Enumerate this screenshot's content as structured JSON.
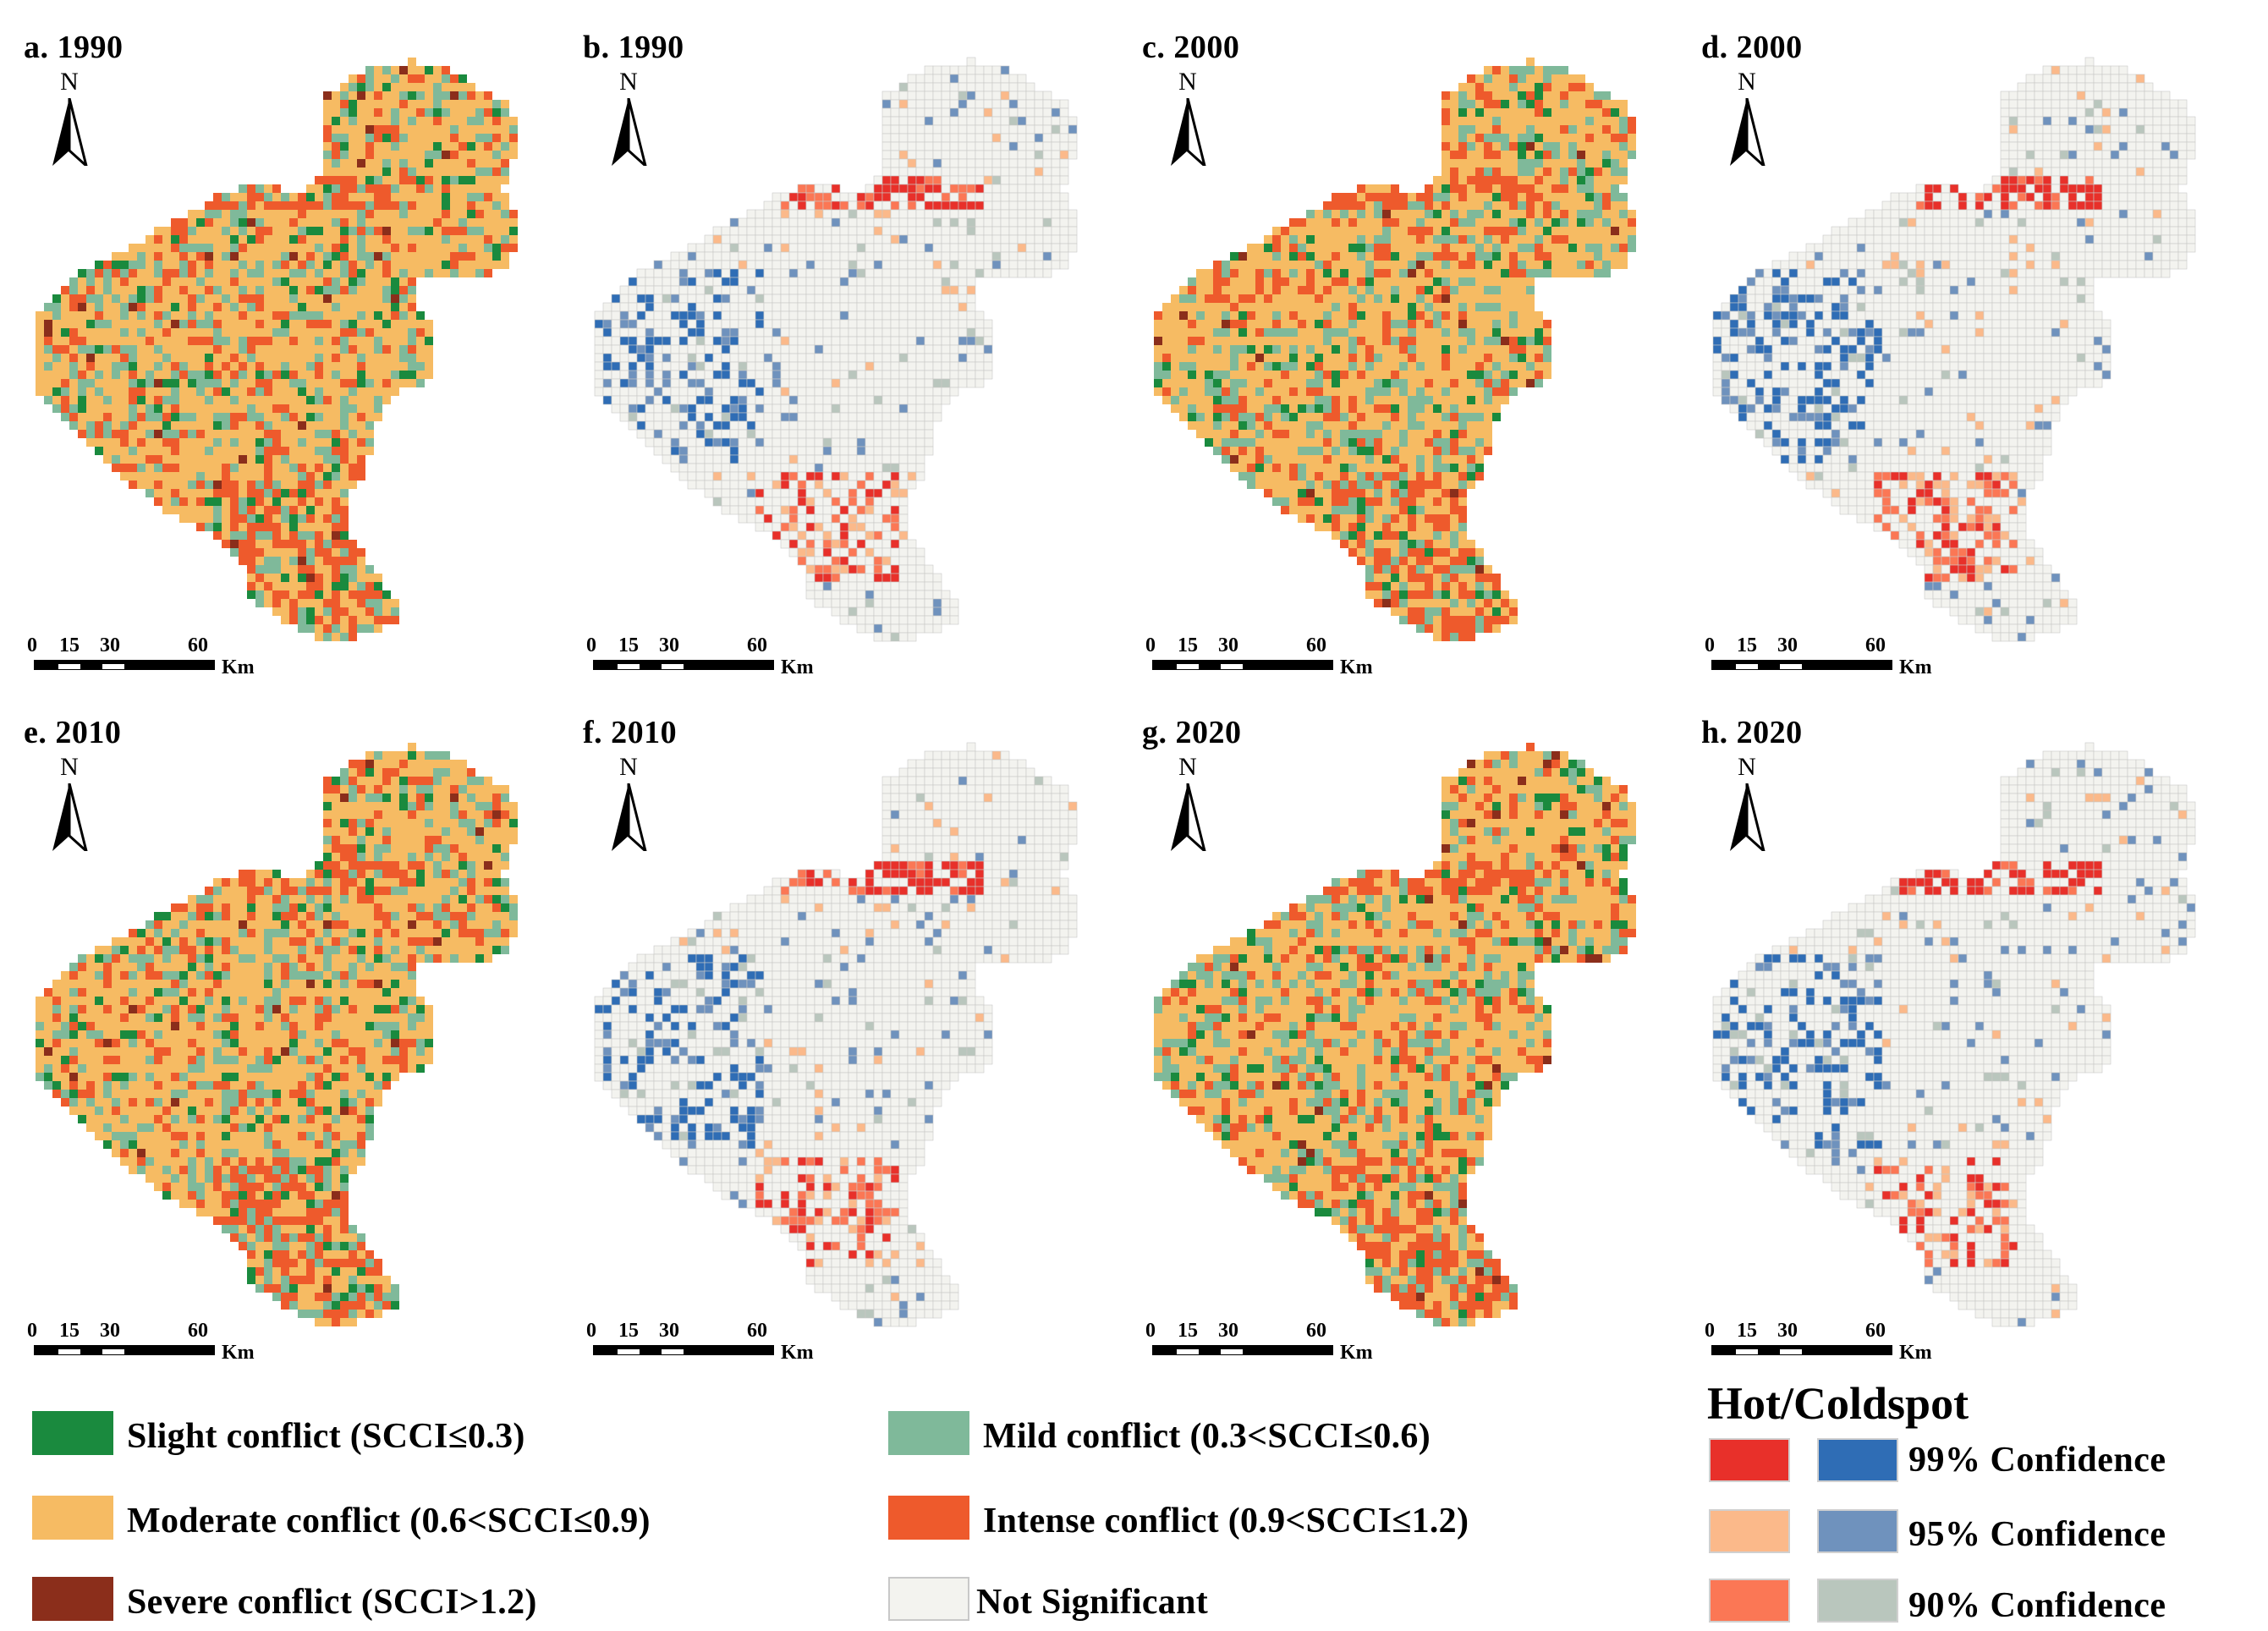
{
  "panels": [
    {
      "id": "a",
      "label": "a. 1990",
      "kind": "conflict"
    },
    {
      "id": "b",
      "label": "b. 1990",
      "kind": "hotspot"
    },
    {
      "id": "c",
      "label": "c. 2000",
      "kind": "conflict"
    },
    {
      "id": "d",
      "label": "d. 2000",
      "kind": "hotspot"
    },
    {
      "id": "e",
      "label": "e. 2010",
      "kind": "conflict"
    },
    {
      "id": "f",
      "label": "f. 2010",
      "kind": "hotspot"
    },
    {
      "id": "g",
      "label": "g. 2020",
      "kind": "conflict"
    },
    {
      "id": "h",
      "label": "h. 2020",
      "kind": "hotspot"
    }
  ],
  "north_arrow": {
    "letter": "N"
  },
  "scale_bar": {
    "ticks": [
      "0",
      "15",
      "30",
      "60"
    ],
    "unit": "Km"
  },
  "legend": {
    "conflict_items": [
      {
        "label": "Slight conflict (SCCI≤0.3)",
        "color": "#1a8a3e"
      },
      {
        "label": "Mild conflict (0.3<SCCI≤0.6)",
        "color": "#7fb99a"
      },
      {
        "label": "Moderate conflict (0.6<SCCI≤0.9)",
        "color": "#f6bb63"
      },
      {
        "label": "Intense conflict (0.9<SCCI≤1.2)",
        "color": "#ee5a2c"
      },
      {
        "label": "Severe conflict (SCCI>1.2)",
        "color": "#8b2e1b"
      },
      {
        "label": "Not Significant",
        "color": "#f3f3ef"
      }
    ],
    "hotspot": {
      "title": "Hot/Coldspot",
      "rows": [
        {
          "label": "99% Confidence",
          "hot_color": "#e8302a",
          "cold_color": "#2f6db5"
        },
        {
          "label": "95% Confidence",
          "hot_color": "#fbb98a",
          "cold_color": "#6f92bd"
        },
        {
          "label": "90% Confidence",
          "hot_color": "#fb7755",
          "cold_color": "#b9c6bd"
        }
      ]
    }
  }
}
